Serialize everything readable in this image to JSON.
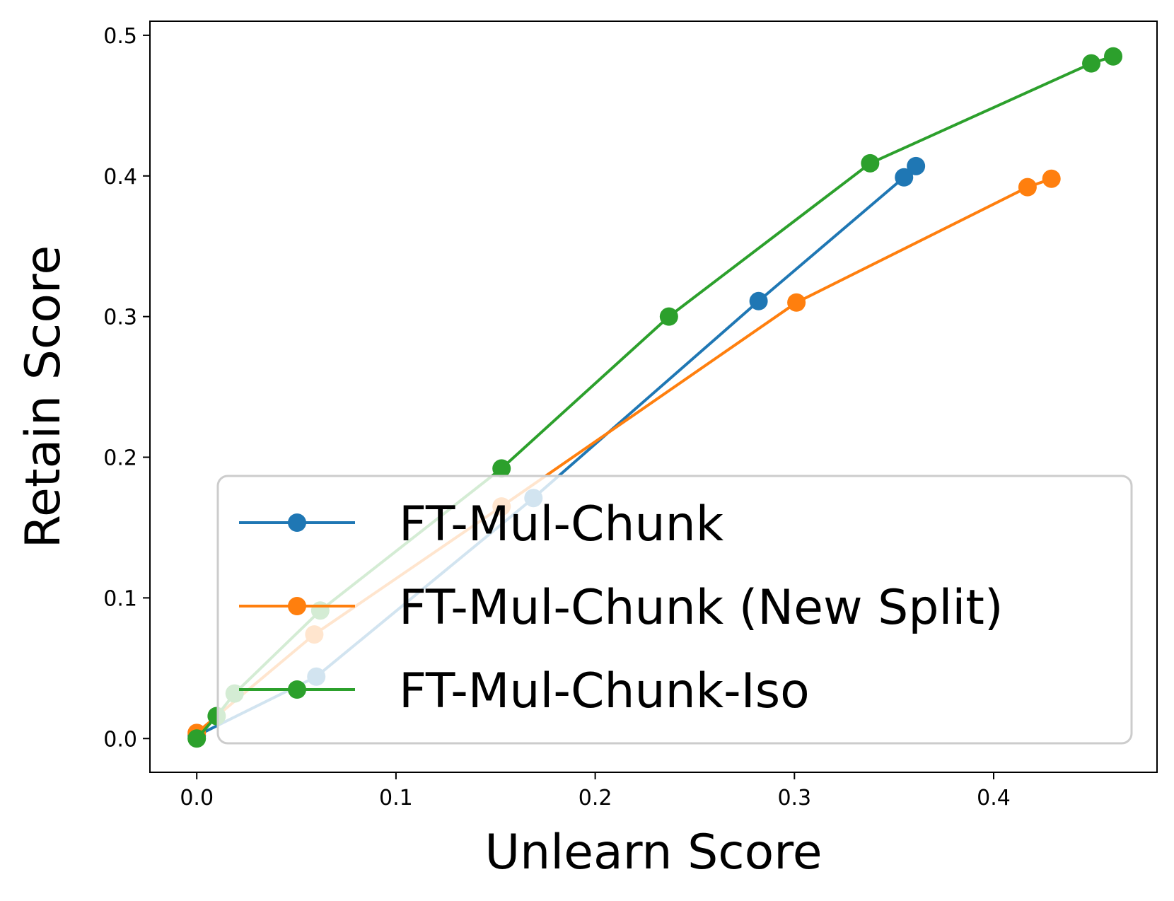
{
  "chart_data": {
    "type": "line",
    "title": "",
    "xlabel": "Unlearn Score",
    "ylabel": "Retain Score",
    "xlim": [
      -0.0235,
      0.482
    ],
    "ylim": [
      -0.024,
      0.51
    ],
    "xticks": [
      {
        "value": 0.0,
        "label": "0.0"
      },
      {
        "value": 0.1,
        "label": "0.1"
      },
      {
        "value": 0.2,
        "label": "0.2"
      },
      {
        "value": 0.3,
        "label": "0.3"
      },
      {
        "value": 0.4,
        "label": "0.4"
      }
    ],
    "yticks": [
      {
        "value": 0.0,
        "label": "0.0"
      },
      {
        "value": 0.1,
        "label": "0.1"
      },
      {
        "value": 0.2,
        "label": "0.2"
      },
      {
        "value": 0.3,
        "label": "0.3"
      },
      {
        "value": 0.4,
        "label": "0.4"
      },
      {
        "value": 0.5,
        "label": "0.5"
      }
    ],
    "grid": false,
    "legend_position": "lower-right",
    "series": [
      {
        "name": "FT-Mul-Chunk",
        "color": "#1f77b4",
        "x": [
          0.0,
          0.06,
          0.169,
          0.282,
          0.355,
          0.361
        ],
        "y": [
          0.002,
          0.044,
          0.171,
          0.311,
          0.399,
          0.407
        ]
      },
      {
        "name": "FT-Mul-Chunk (New Split)",
        "color": "#ff7f0e",
        "x": [
          0.0,
          0.059,
          0.153,
          0.301,
          0.417,
          0.429
        ],
        "y": [
          0.004,
          0.074,
          0.165,
          0.31,
          0.392,
          0.398
        ]
      },
      {
        "name": "FT-Mul-Chunk-Iso",
        "color": "#2ca02c",
        "x": [
          0.0,
          0.01,
          0.019,
          0.062,
          0.153,
          0.237,
          0.338,
          0.449,
          0.46
        ],
        "y": [
          0.0,
          0.016,
          0.032,
          0.091,
          0.192,
          0.3,
          0.409,
          0.48,
          0.485
        ]
      }
    ]
  }
}
